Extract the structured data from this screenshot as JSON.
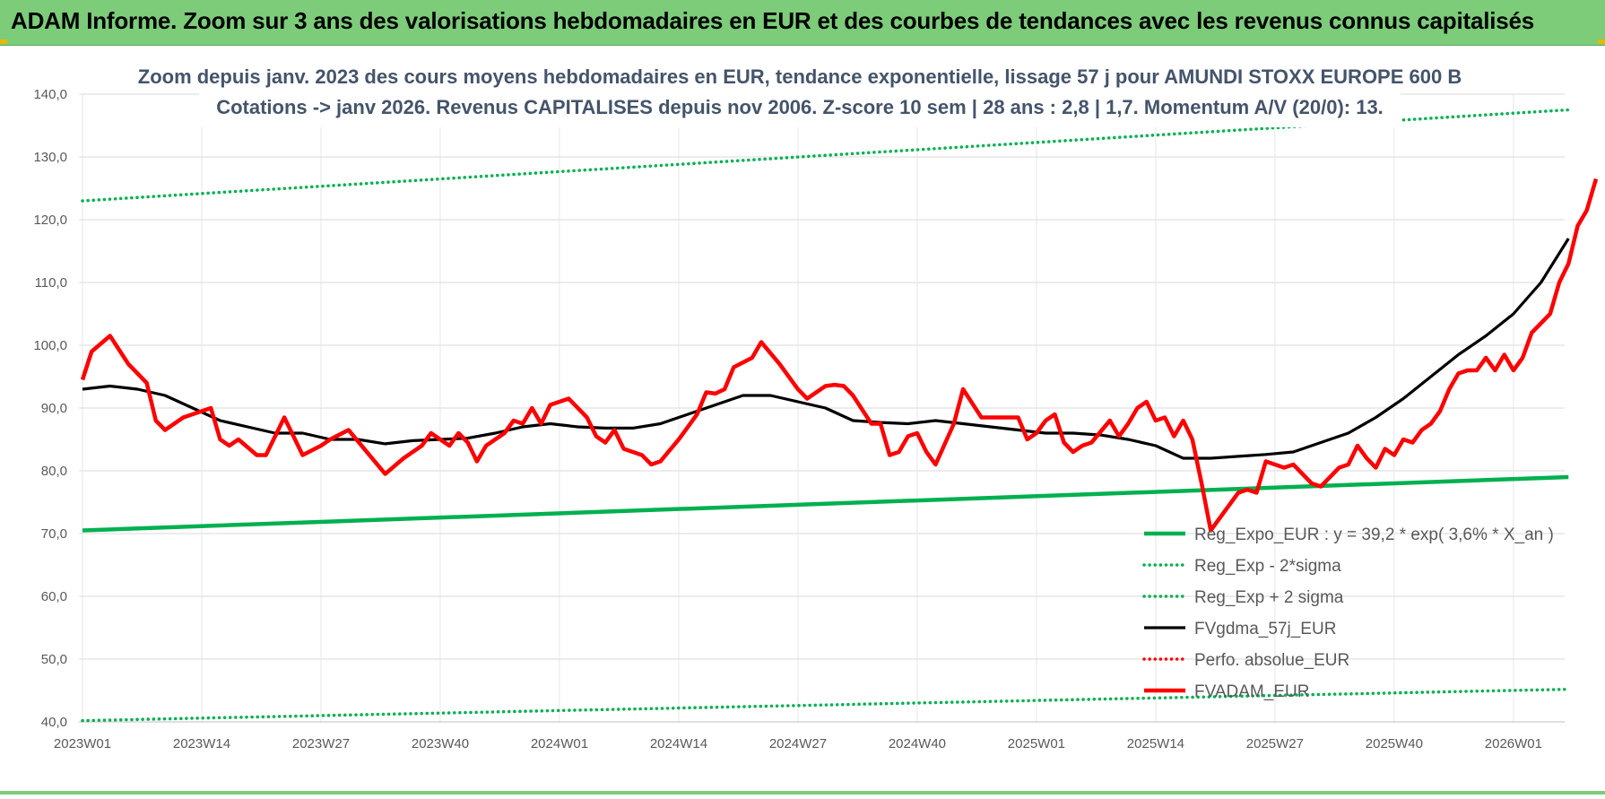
{
  "header": {
    "title": "ADAM Informe. Zoom sur 3 ans des valorisations hebdomadaires en EUR et des courbes de tendances avec les revenus connus capitalisés"
  },
  "chart_data": {
    "type": "line",
    "title_lines": [
      "Zoom depuis janv. 2023 des cours moyens hebdomadaires en EUR, tendance exponentielle, lissage 57 j pour AMUNDI STOXX EUROPE 600 B",
      "Cotations -> janv 2026. Revenus CAPITALISES depuis nov 2006. Z-score 10 sem | 28 ans : 2,8 | 1,7. Momentum A/V (20/0): 13."
    ],
    "ylim": [
      40,
      140
    ],
    "yticks": [
      "40,0",
      "50,0",
      "60,0",
      "70,0",
      "80,0",
      "90,0",
      "100,0",
      "110,0",
      "120,0",
      "130,0",
      "140,0"
    ],
    "xlim": [
      0,
      162
    ],
    "xticks": [
      {
        "label": "2023W01",
        "x": 0
      },
      {
        "label": "2023W14",
        "x": 13
      },
      {
        "label": "2023W27",
        "x": 26
      },
      {
        "label": "2023W40",
        "x": 39
      },
      {
        "label": "2024W01",
        "x": 52
      },
      {
        "label": "2024W14",
        "x": 65
      },
      {
        "label": "2024W27",
        "x": 78
      },
      {
        "label": "2024W40",
        "x": 91
      },
      {
        "label": "2025W01",
        "x": 104
      },
      {
        "label": "2025W14",
        "x": 117
      },
      {
        "label": "2025W27",
        "x": 130
      },
      {
        "label": "2025W40",
        "x": 143
      },
      {
        "label": "2026W01",
        "x": 156
      }
    ],
    "series": [
      {
        "name": "Reg_Expo_EUR : y = 39,2 * exp( 3,6% *  X_an )",
        "style": "thick",
        "color": "#00b050",
        "keypoints": [
          [
            0,
            70.5
          ],
          [
            162,
            79.0
          ]
        ]
      },
      {
        "name": "Reg_Exp - 2*sigma",
        "style": "dotted",
        "color": "#00b050",
        "keypoints": [
          [
            0,
            40.2
          ],
          [
            162,
            45.2
          ]
        ]
      },
      {
        "name": "Reg_Exp + 2 sigma",
        "style": "dotted",
        "color": "#00b050",
        "keypoints": [
          [
            0,
            123.0
          ],
          [
            162,
            137.5
          ]
        ]
      },
      {
        "name": "FVgdma_57j_EUR",
        "style": "solid",
        "color": "#000000",
        "keypoints": [
          [
            0,
            93
          ],
          [
            3,
            93.5
          ],
          [
            6,
            93
          ],
          [
            9,
            92
          ],
          [
            12,
            90
          ],
          [
            15,
            88
          ],
          [
            18,
            87
          ],
          [
            21,
            86
          ],
          [
            24,
            86
          ],
          [
            27,
            85
          ],
          [
            30,
            85
          ],
          [
            33,
            84.3
          ],
          [
            36,
            84.8
          ],
          [
            39,
            85
          ],
          [
            42,
            85.2
          ],
          [
            45,
            86
          ],
          [
            48,
            87
          ],
          [
            51,
            87.5
          ],
          [
            54,
            87
          ],
          [
            57,
            86.8
          ],
          [
            60,
            86.8
          ],
          [
            63,
            87.5
          ],
          [
            66,
            89
          ],
          [
            69,
            90.5
          ],
          [
            72,
            92
          ],
          [
            75,
            92
          ],
          [
            78,
            91
          ],
          [
            81,
            90
          ],
          [
            84,
            88
          ],
          [
            87,
            87.7
          ],
          [
            90,
            87.5
          ],
          [
            93,
            88
          ],
          [
            96,
            87.5
          ],
          [
            99,
            87
          ],
          [
            102,
            86.5
          ],
          [
            105,
            86
          ],
          [
            108,
            86
          ],
          [
            111,
            85.7
          ],
          [
            114,
            85
          ],
          [
            117,
            84
          ],
          [
            120,
            82
          ],
          [
            123,
            82
          ],
          [
            126,
            82.3
          ],
          [
            129,
            82.6
          ],
          [
            132,
            83
          ],
          [
            135,
            84.5
          ],
          [
            138,
            86
          ],
          [
            141,
            88.5
          ],
          [
            144,
            91.5
          ],
          [
            147,
            95
          ],
          [
            150,
            98.5
          ],
          [
            153,
            101.5
          ],
          [
            156,
            105
          ],
          [
            159,
            110
          ],
          [
            162,
            117
          ]
        ]
      },
      {
        "name": "Perfo. absolue_EUR",
        "style": "dotted",
        "color": "#ff0000",
        "keypoints": []
      },
      {
        "name": "FVADAM_EUR",
        "style": "thick",
        "color": "#ff0000",
        "keypoints": [
          [
            0,
            94.5
          ],
          [
            1,
            99
          ],
          [
            3,
            101.5
          ],
          [
            5,
            97
          ],
          [
            7,
            94
          ],
          [
            8,
            88
          ],
          [
            9,
            86.5
          ],
          [
            11,
            88.5
          ],
          [
            13,
            89.5
          ],
          [
            14,
            90
          ],
          [
            15,
            85
          ],
          [
            16,
            84
          ],
          [
            17,
            85
          ],
          [
            19,
            82.5
          ],
          [
            20,
            82.5
          ],
          [
            22,
            88.5
          ],
          [
            24,
            82.5
          ],
          [
            26,
            84
          ],
          [
            27,
            85
          ],
          [
            29,
            86.5
          ],
          [
            31,
            83
          ],
          [
            33,
            79.5
          ],
          [
            35,
            82
          ],
          [
            37,
            84
          ],
          [
            38,
            86
          ],
          [
            40,
            84
          ],
          [
            41,
            86
          ],
          [
            42,
            84.5
          ],
          [
            43,
            81.5
          ],
          [
            44,
            84
          ],
          [
            46,
            86
          ],
          [
            47,
            88
          ],
          [
            48,
            87.5
          ],
          [
            49,
            90
          ],
          [
            50,
            87.5
          ],
          [
            51,
            90.5
          ],
          [
            53,
            91.5
          ],
          [
            55,
            88.5
          ],
          [
            56,
            85.5
          ],
          [
            57,
            84.5
          ],
          [
            58,
            86.5
          ],
          [
            59,
            83.5
          ],
          [
            61,
            82.5
          ],
          [
            62,
            81
          ],
          [
            63,
            81.5
          ],
          [
            65,
            85
          ],
          [
            67,
            89
          ],
          [
            68,
            92.5
          ],
          [
            69,
            92.3
          ],
          [
            70,
            93
          ],
          [
            71,
            96.5
          ],
          [
            73,
            98
          ],
          [
            74,
            100.5
          ],
          [
            76,
            97
          ],
          [
            78,
            93
          ],
          [
            79,
            91.5
          ],
          [
            81,
            93.5
          ],
          [
            82,
            93.7
          ],
          [
            83,
            93.5
          ],
          [
            84,
            92
          ],
          [
            86,
            87.5
          ],
          [
            87,
            87.5
          ],
          [
            88,
            82.5
          ],
          [
            89,
            83
          ],
          [
            90,
            85.5
          ],
          [
            91,
            86
          ],
          [
            92,
            83
          ],
          [
            93,
            81
          ],
          [
            95,
            87.5
          ],
          [
            96,
            93
          ],
          [
            98,
            88.5
          ],
          [
            100,
            88.5
          ],
          [
            102,
            88.5
          ],
          [
            103,
            85
          ],
          [
            104,
            86
          ],
          [
            105,
            88
          ],
          [
            106,
            89
          ],
          [
            107,
            84.5
          ],
          [
            108,
            83
          ],
          [
            109,
            84
          ],
          [
            110,
            84.5
          ],
          [
            112,
            88
          ],
          [
            113,
            85.5
          ],
          [
            114,
            87.5
          ],
          [
            115,
            90
          ],
          [
            116,
            91
          ],
          [
            117,
            88
          ],
          [
            118,
            88.5
          ],
          [
            119,
            85.5
          ],
          [
            120,
            88
          ],
          [
            121,
            85
          ],
          [
            122,
            78
          ],
          [
            123,
            70.5
          ],
          [
            124,
            72.5
          ],
          [
            126,
            76.5
          ],
          [
            127,
            77
          ],
          [
            128,
            76.5
          ],
          [
            129,
            81.5
          ],
          [
            130,
            81
          ],
          [
            131,
            80.5
          ],
          [
            132,
            81
          ],
          [
            134,
            78
          ],
          [
            135,
            77.5
          ],
          [
            136,
            79
          ],
          [
            137,
            80.5
          ],
          [
            138,
            81
          ],
          [
            139,
            84
          ],
          [
            140,
            82
          ],
          [
            141,
            80.5
          ],
          [
            142,
            83.5
          ],
          [
            143,
            82.5
          ],
          [
            144,
            85
          ],
          [
            145,
            84.5
          ],
          [
            146,
            86.5
          ],
          [
            147,
            87.5
          ],
          [
            148,
            89.5
          ],
          [
            149,
            93
          ],
          [
            150,
            95.5
          ],
          [
            151,
            96
          ],
          [
            152,
            96
          ],
          [
            153,
            98
          ],
          [
            154,
            96
          ],
          [
            155,
            98.5
          ],
          [
            156,
            96
          ],
          [
            157,
            98
          ],
          [
            158,
            102
          ],
          [
            159,
            103.5
          ],
          [
            160,
            105
          ],
          [
            161,
            110
          ],
          [
            162,
            113
          ],
          [
            163,
            119
          ],
          [
            164,
            121.5
          ],
          [
            165,
            126.5
          ]
        ]
      }
    ],
    "legend": {
      "placement": "bottom-right",
      "items": [
        "Reg_Expo_EUR : y = 39,2 * exp( 3,6% *  X_an )",
        "Reg_Exp - 2*sigma",
        "Reg_Exp + 2 sigma",
        "FVgdma_57j_EUR",
        "Perfo. absolue_EUR",
        "FVADAM_EUR"
      ]
    }
  }
}
